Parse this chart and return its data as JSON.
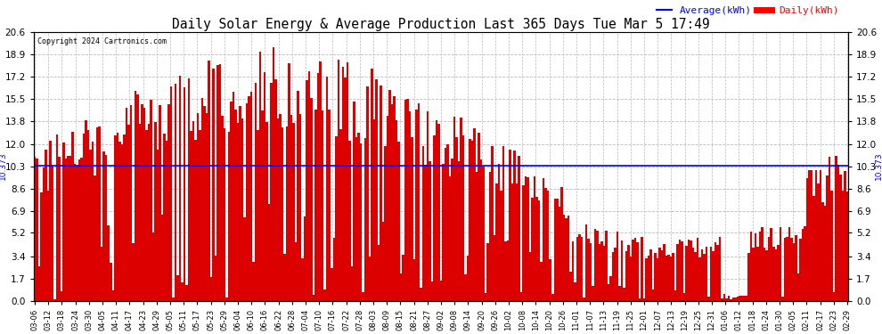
{
  "title": "Daily Solar Energy & Average Production Last 365 Days Tue Mar 5 17:49",
  "copyright": "Copyright 2024 Cartronics.com",
  "average_value": 10.373,
  "average_label": "10.373",
  "bar_color": "#dd0000",
  "avg_line_color": "blue",
  "background_color": "#ffffff",
  "plot_bg_color": "#ffffff",
  "grid_color": "#bbbbbb",
  "yticks": [
    0.0,
    1.7,
    3.4,
    5.2,
    6.9,
    8.6,
    10.3,
    12.0,
    13.8,
    15.5,
    17.2,
    18.9,
    20.6
  ],
  "ylim": [
    0.0,
    20.6
  ],
  "legend_avg_label": "Average(kWh)",
  "legend_daily_label": "Daily(kWh)",
  "legend_avg_color": "blue",
  "legend_daily_color": "red",
  "x_tick_dates": [
    "03-06",
    "03-12",
    "03-18",
    "03-24",
    "03-30",
    "04-05",
    "04-11",
    "04-17",
    "04-23",
    "04-29",
    "05-05",
    "05-11",
    "05-17",
    "05-23",
    "05-29",
    "06-04",
    "06-10",
    "06-16",
    "06-22",
    "06-28",
    "07-04",
    "07-10",
    "07-16",
    "07-22",
    "07-28",
    "08-03",
    "08-09",
    "08-15",
    "08-21",
    "08-27",
    "09-02",
    "09-08",
    "09-14",
    "09-20",
    "09-26",
    "10-02",
    "10-08",
    "10-14",
    "10-20",
    "10-26",
    "11-01",
    "11-07",
    "11-13",
    "11-19",
    "11-25",
    "12-01",
    "12-07",
    "12-13",
    "12-19",
    "12-25",
    "12-31",
    "01-06",
    "01-12",
    "01-18",
    "01-24",
    "01-30",
    "02-05",
    "02-11",
    "02-17",
    "02-23",
    "02-29"
  ],
  "n_days": 365
}
